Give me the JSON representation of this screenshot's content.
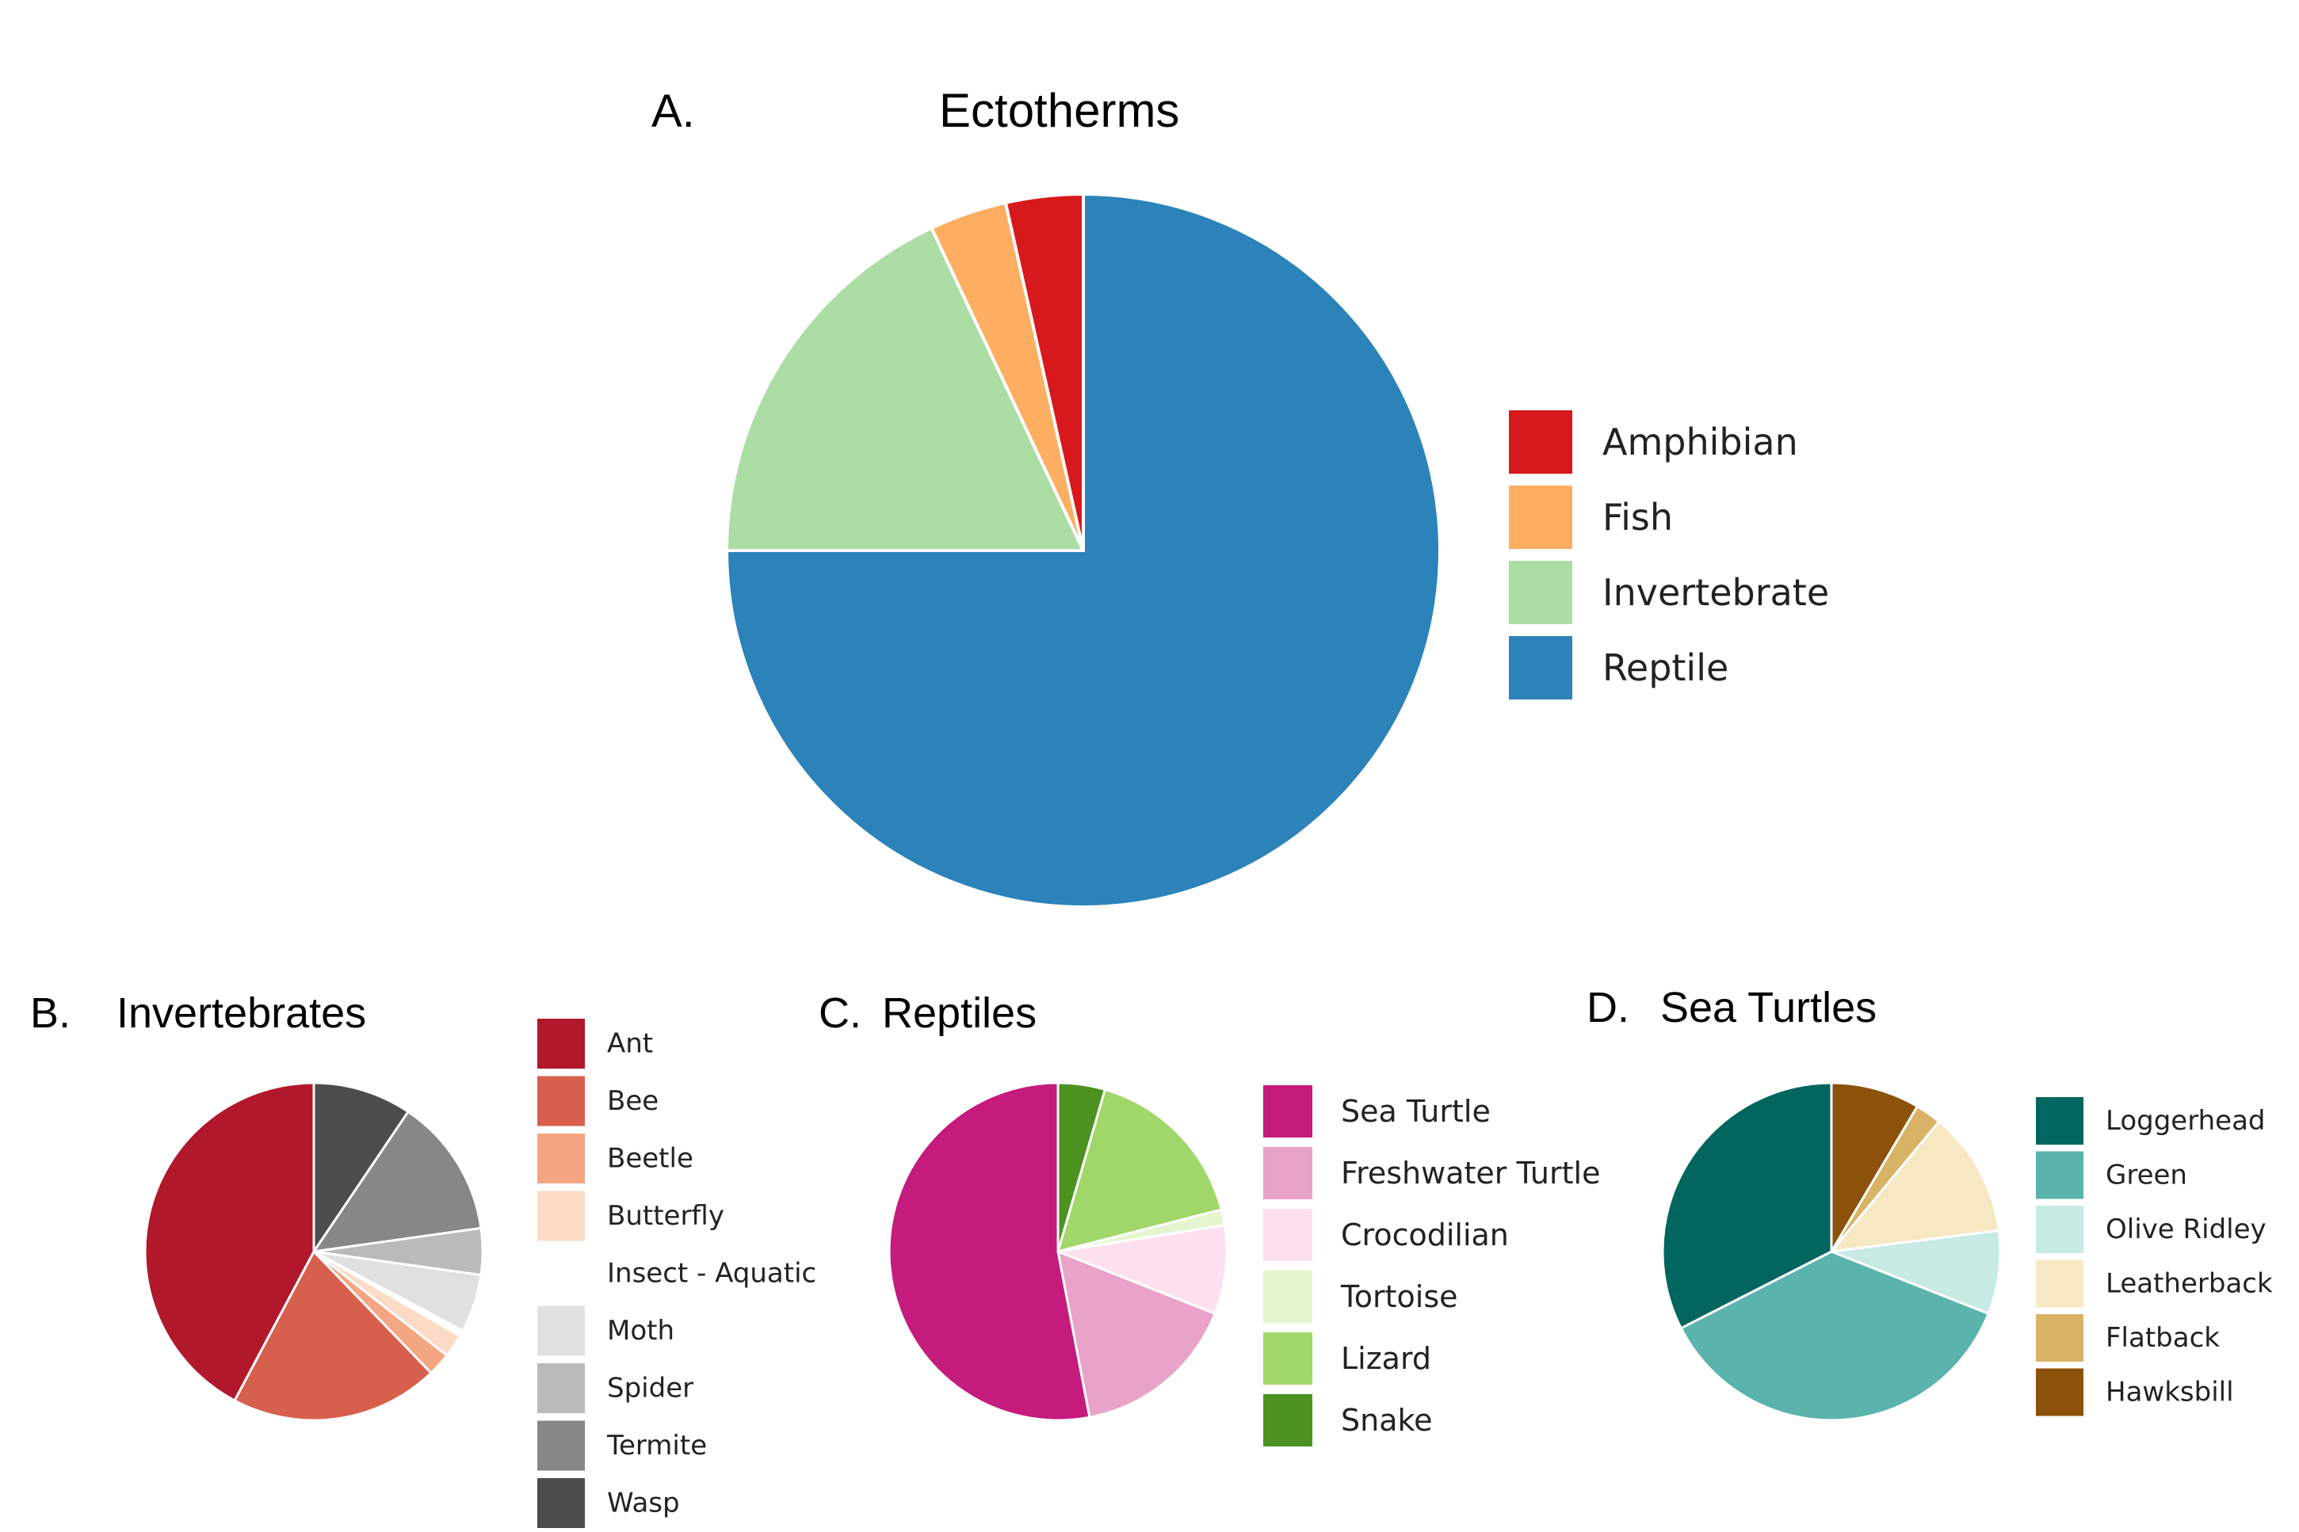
{
  "chart_data": [
    {
      "type": "pie",
      "panel": "A.",
      "title": "Ectotherms",
      "categories": [
        "Amphibian",
        "Fish",
        "Invertebrate",
        "Reptile"
      ],
      "colors": [
        "#d7191c",
        "#fdae61",
        "#abdda4",
        "#2b83ba"
      ],
      "values": [
        3.5,
        3.5,
        18,
        75
      ],
      "draw_order": [
        "Reptile",
        "Invertebrate",
        "Fish",
        "Amphibian"
      ],
      "legend_position": "right"
    },
    {
      "type": "pie",
      "panel": "B.",
      "title": "Invertebrates",
      "categories": [
        "Ant",
        "Bee",
        "Beetle",
        "Butterfly",
        "Insect - Aquatic",
        "Moth",
        "Spider",
        "Termite",
        "Wasp"
      ],
      "colors": [
        "#b2182b",
        "#d6604d",
        "#f4a582",
        "#fddbc7",
        "#ffffff",
        "#e0e0e0",
        "#bababa",
        "#878787",
        "#4d4d4d"
      ],
      "values": [
        38,
        18,
        2,
        2,
        0.5,
        5,
        4,
        12,
        8.5
      ],
      "draw_order": [
        "Wasp",
        "Termite",
        "Spider",
        "Moth",
        "Insect - Aquatic",
        "Butterfly",
        "Beetle",
        "Bee",
        "Ant"
      ],
      "legend_position": "right"
    },
    {
      "type": "pie",
      "panel": "C.",
      "title": "Reptiles",
      "categories": [
        "Sea Turtle",
        "Freshwater Turtle",
        "Crocodilian",
        "Tortoise",
        "Lizard",
        "Snake"
      ],
      "colors": [
        "#c51b7d",
        "#e9a3c9",
        "#fde0ef",
        "#e6f5d0",
        "#a1d76a",
        "#4d9221"
      ],
      "values": [
        53,
        16,
        8.5,
        1.5,
        16.5,
        4.5
      ],
      "draw_order": [
        "Snake",
        "Lizard",
        "Tortoise",
        "Crocodilian",
        "Freshwater Turtle",
        "Sea Turtle"
      ],
      "legend_position": "right"
    },
    {
      "type": "pie",
      "panel": "D.",
      "title": "Sea Turtles",
      "categories": [
        "Loggerhead",
        "Green",
        "Olive Ridley",
        "Leatherback",
        "Flatback",
        "Hawksbill"
      ],
      "colors": [
        "#01665e",
        "#5ab4ac",
        "#c7eae5",
        "#f6e8c3",
        "#d8b365",
        "#8c510a"
      ],
      "values": [
        32.5,
        36.5,
        8,
        12,
        2.5,
        8.5
      ],
      "draw_order": [
        "Hawksbill",
        "Flatback",
        "Leatherback",
        "Olive Ridley",
        "Green",
        "Loggerhead"
      ],
      "legend_position": "right"
    }
  ]
}
